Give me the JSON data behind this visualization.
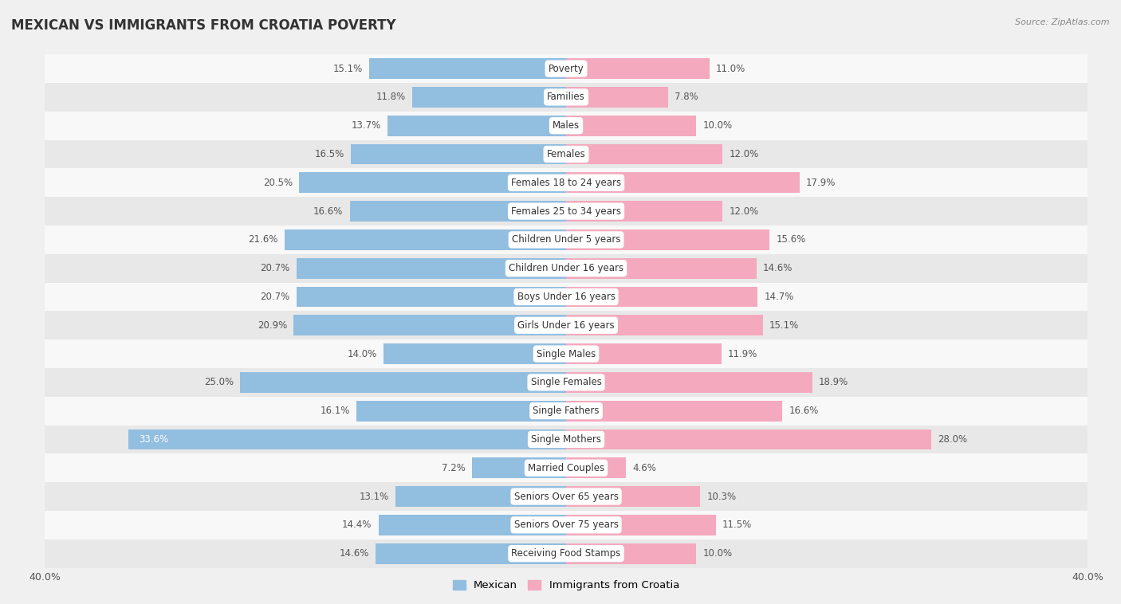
{
  "title": "MEXICAN VS IMMIGRANTS FROM CROATIA POVERTY",
  "source": "Source: ZipAtlas.com",
  "categories": [
    "Poverty",
    "Families",
    "Males",
    "Females",
    "Females 18 to 24 years",
    "Females 25 to 34 years",
    "Children Under 5 years",
    "Children Under 16 years",
    "Boys Under 16 years",
    "Girls Under 16 years",
    "Single Males",
    "Single Females",
    "Single Fathers",
    "Single Mothers",
    "Married Couples",
    "Seniors Over 65 years",
    "Seniors Over 75 years",
    "Receiving Food Stamps"
  ],
  "mexican_values": [
    15.1,
    11.8,
    13.7,
    16.5,
    20.5,
    16.6,
    21.6,
    20.7,
    20.7,
    20.9,
    14.0,
    25.0,
    16.1,
    33.6,
    7.2,
    13.1,
    14.4,
    14.6
  ],
  "croatia_values": [
    11.0,
    7.8,
    10.0,
    12.0,
    17.9,
    12.0,
    15.6,
    14.6,
    14.7,
    15.1,
    11.9,
    18.9,
    16.6,
    28.0,
    4.6,
    10.3,
    11.5,
    10.0
  ],
  "mexican_color": "#92BEE0",
  "croatia_color": "#F4A9BE",
  "mexican_label": "Mexican",
  "croatia_label": "Immigrants from Croatia",
  "xlim": 40.0,
  "background_color": "#f0f0f0",
  "row_bg_light": "#f8f8f8",
  "row_bg_dark": "#e8e8e8",
  "title_fontsize": 12,
  "label_fontsize": 8.5,
  "value_fontsize": 8.5
}
